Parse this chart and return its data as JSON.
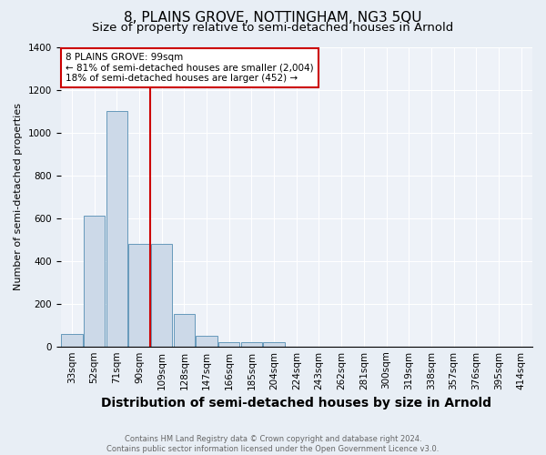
{
  "title": "8, PLAINS GROVE, NOTTINGHAM, NG3 5QU",
  "subtitle": "Size of property relative to semi-detached houses in Arnold",
  "xlabel": "Distribution of semi-detached houses by size in Arnold",
  "ylabel": "Number of semi-detached properties",
  "footnote": "Contains HM Land Registry data © Crown copyright and database right 2024.\nContains public sector information licensed under the Open Government Licence v3.0.",
  "bin_labels": [
    "33sqm",
    "52sqm",
    "71sqm",
    "90sqm",
    "109sqm",
    "128sqm",
    "147sqm",
    "166sqm",
    "185sqm",
    "204sqm",
    "224sqm",
    "243sqm",
    "262sqm",
    "281sqm",
    "300sqm",
    "319sqm",
    "338sqm",
    "357sqm",
    "376sqm",
    "395sqm",
    "414sqm"
  ],
  "values": [
    60,
    610,
    1100,
    480,
    480,
    150,
    50,
    20,
    20,
    20,
    0,
    0,
    0,
    0,
    0,
    0,
    0,
    0,
    0,
    0,
    0
  ],
  "bar_color": "#ccd9e8",
  "bar_edge_color": "#6699bb",
  "red_line_index": 3.47,
  "ylim": [
    0,
    1400
  ],
  "annotation_text": "8 PLAINS GROVE: 99sqm\n← 81% of semi-detached houses are smaller (2,004)\n18% of semi-detached houses are larger (452) →",
  "annotation_box_color": "#ffffff",
  "annotation_box_edge_color": "#cc0000",
  "bg_color": "#e8eef5",
  "plot_bg_color": "#eef2f8",
  "grid_color": "#ffffff",
  "title_fontsize": 11,
  "subtitle_fontsize": 9.5,
  "xlabel_fontsize": 10,
  "ylabel_fontsize": 8,
  "tick_fontsize": 7.5,
  "annot_fontsize": 7.5,
  "footnote_fontsize": 6
}
